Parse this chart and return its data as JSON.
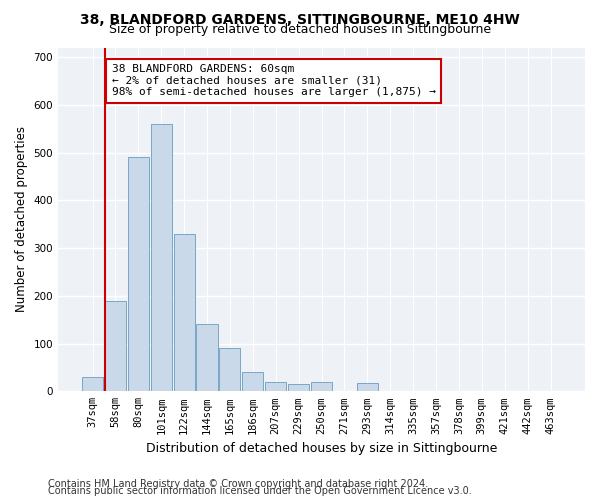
{
  "title1": "38, BLANDFORD GARDENS, SITTINGBOURNE, ME10 4HW",
  "title2": "Size of property relative to detached houses in Sittingbourne",
  "xlabel": "Distribution of detached houses by size in Sittingbourne",
  "ylabel": "Number of detached properties",
  "footnote1": "Contains HM Land Registry data © Crown copyright and database right 2024.",
  "footnote2": "Contains public sector information licensed under the Open Government Licence v3.0.",
  "annotation_line1": "38 BLANDFORD GARDENS: 60sqm",
  "annotation_line2": "← 2% of detached houses are smaller (31)",
  "annotation_line3": "98% of semi-detached houses are larger (1,875) →",
  "bar_color": "#c9d9ea",
  "bar_edge_color": "#6a9dbf",
  "vline_color": "#cc0000",
  "categories": [
    "37sqm",
    "58sqm",
    "80sqm",
    "101sqm",
    "122sqm",
    "144sqm",
    "165sqm",
    "186sqm",
    "207sqm",
    "229sqm",
    "250sqm",
    "271sqm",
    "293sqm",
    "314sqm",
    "335sqm",
    "357sqm",
    "378sqm",
    "399sqm",
    "421sqm",
    "442sqm",
    "463sqm"
  ],
  "values": [
    30,
    190,
    490,
    560,
    330,
    140,
    90,
    40,
    20,
    15,
    20,
    0,
    18,
    0,
    0,
    0,
    0,
    0,
    0,
    0,
    0
  ],
  "ylim": [
    0,
    720
  ],
  "yticks": [
    0,
    100,
    200,
    300,
    400,
    500,
    600,
    700
  ],
  "background_color": "#eef2f7",
  "grid_color": "#ffffff",
  "title1_fontsize": 10,
  "title2_fontsize": 9,
  "xlabel_fontsize": 9,
  "ylabel_fontsize": 8.5,
  "tick_fontsize": 7.5,
  "annotation_fontsize": 8,
  "footnote_fontsize": 7
}
